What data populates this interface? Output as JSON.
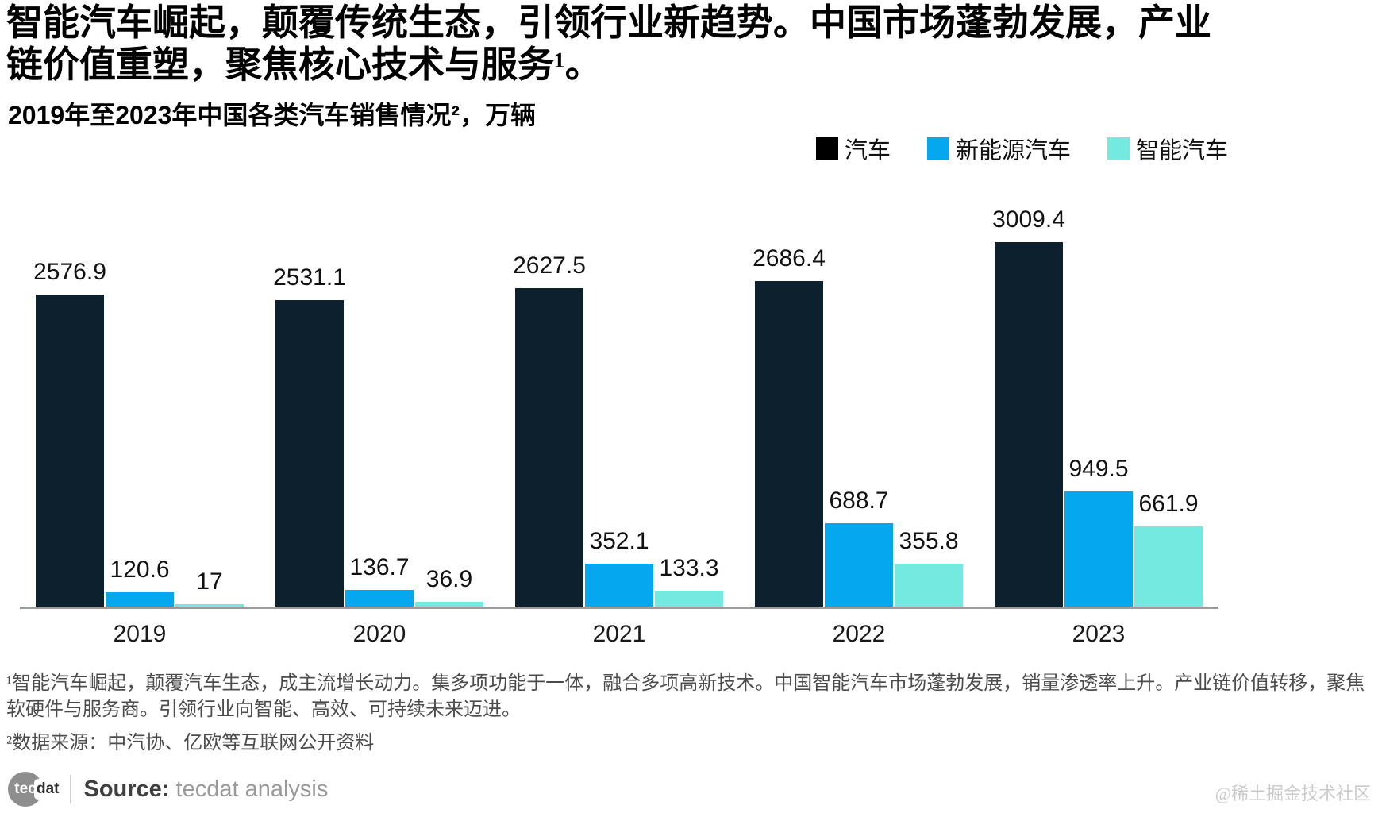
{
  "page": {
    "title": "智能汽车崛起，颠覆传统生态，引领行业新趋势。中国市场蓬勃发展，产业链价值重塑，聚焦核心技术与服务¹。",
    "subtitle": "2019年至2023年中国各类汽车销售情况²，万辆"
  },
  "legend": [
    {
      "label": "汽车",
      "color": "#000000"
    },
    {
      "label": "新能源汽车",
      "color": "#05a8ef"
    },
    {
      "label": "智能汽车",
      "color": "#74e9e0"
    }
  ],
  "chart_data": {
    "type": "bar",
    "title": "2019年至2023年中国各类汽车销售情况，万辆",
    "unit": "万辆",
    "categories": [
      "2019",
      "2020",
      "2021",
      "2022",
      "2023"
    ],
    "series": [
      {
        "name": "汽车",
        "color": "#0d202e",
        "values": [
          2576.9,
          2531.1,
          2627.5,
          2686.4,
          3009.4
        ]
      },
      {
        "name": "新能源汽车",
        "color": "#05a8ef",
        "values": [
          120.6,
          136.7,
          352.1,
          688.7,
          949.5
        ]
      },
      {
        "name": "智能汽车",
        "color": "#74e9e0",
        "values": [
          17,
          36.9,
          133.3,
          355.8,
          661.9
        ]
      }
    ],
    "ylim": [
      0,
      3100
    ],
    "grid": false,
    "value_labels": true,
    "legend_position": "top-right",
    "axis_line_color": "#9b9b9b"
  },
  "footnotes": {
    "note1": "¹智能汽车崛起，颠覆汽车生态，成主流增长动力。集多项功能于一体，融合多项高新技术。中国智能汽车市场蓬勃发展，销量渗透率上升。产业链价值转移，聚焦软硬件与服务商。引领行业向智能、高效、可持续未来迈进。",
    "note2": "²数据来源：中汽协、亿欧等互联网公开资料"
  },
  "footer": {
    "logo_tec": "tec",
    "logo_dat": "dat",
    "source_label": "Source:",
    "source_value": "tecdat analysis",
    "watermark": "@稀土掘金技术社区"
  }
}
